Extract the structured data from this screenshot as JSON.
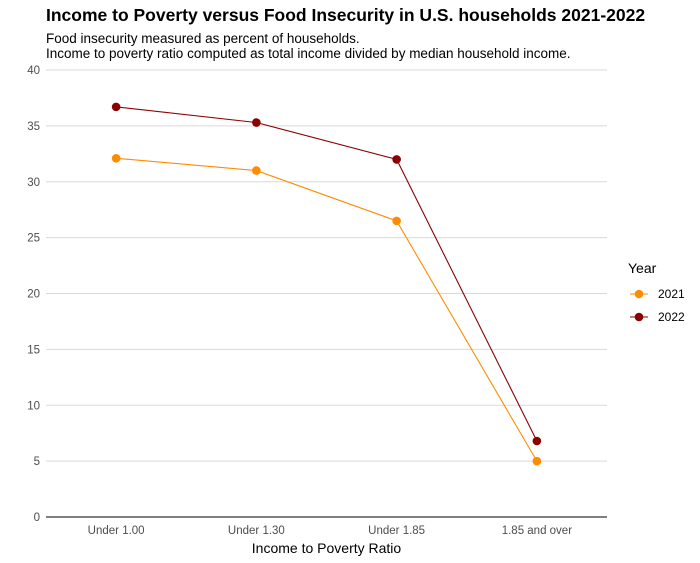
{
  "chart_data": {
    "type": "line",
    "title": "Income to Poverty versus Food Insecurity in U.S. households 2021-2022",
    "subtitle": [
      "Food insecurity measured as percent of households.",
      "Income to poverty ratio computed as total income divided by median household income."
    ],
    "xlabel": "Income to Poverty Ratio",
    "ylabel": "",
    "categories": [
      "Under 1.00",
      "Under 1.30",
      "Under 1.85",
      "1.85 and over"
    ],
    "ylim": [
      0,
      40
    ],
    "yticks": [
      0,
      5,
      10,
      15,
      20,
      25,
      30,
      35,
      40
    ],
    "grid": true,
    "legend": {
      "title": "Year",
      "placement": "right"
    },
    "series": [
      {
        "name": "2021",
        "color": "#FF8C00",
        "values": [
          32.1,
          31.0,
          26.5,
          5.0
        ]
      },
      {
        "name": "2022",
        "color": "#8B0000",
        "values": [
          36.7,
          35.3,
          32.0,
          6.8
        ]
      }
    ]
  }
}
